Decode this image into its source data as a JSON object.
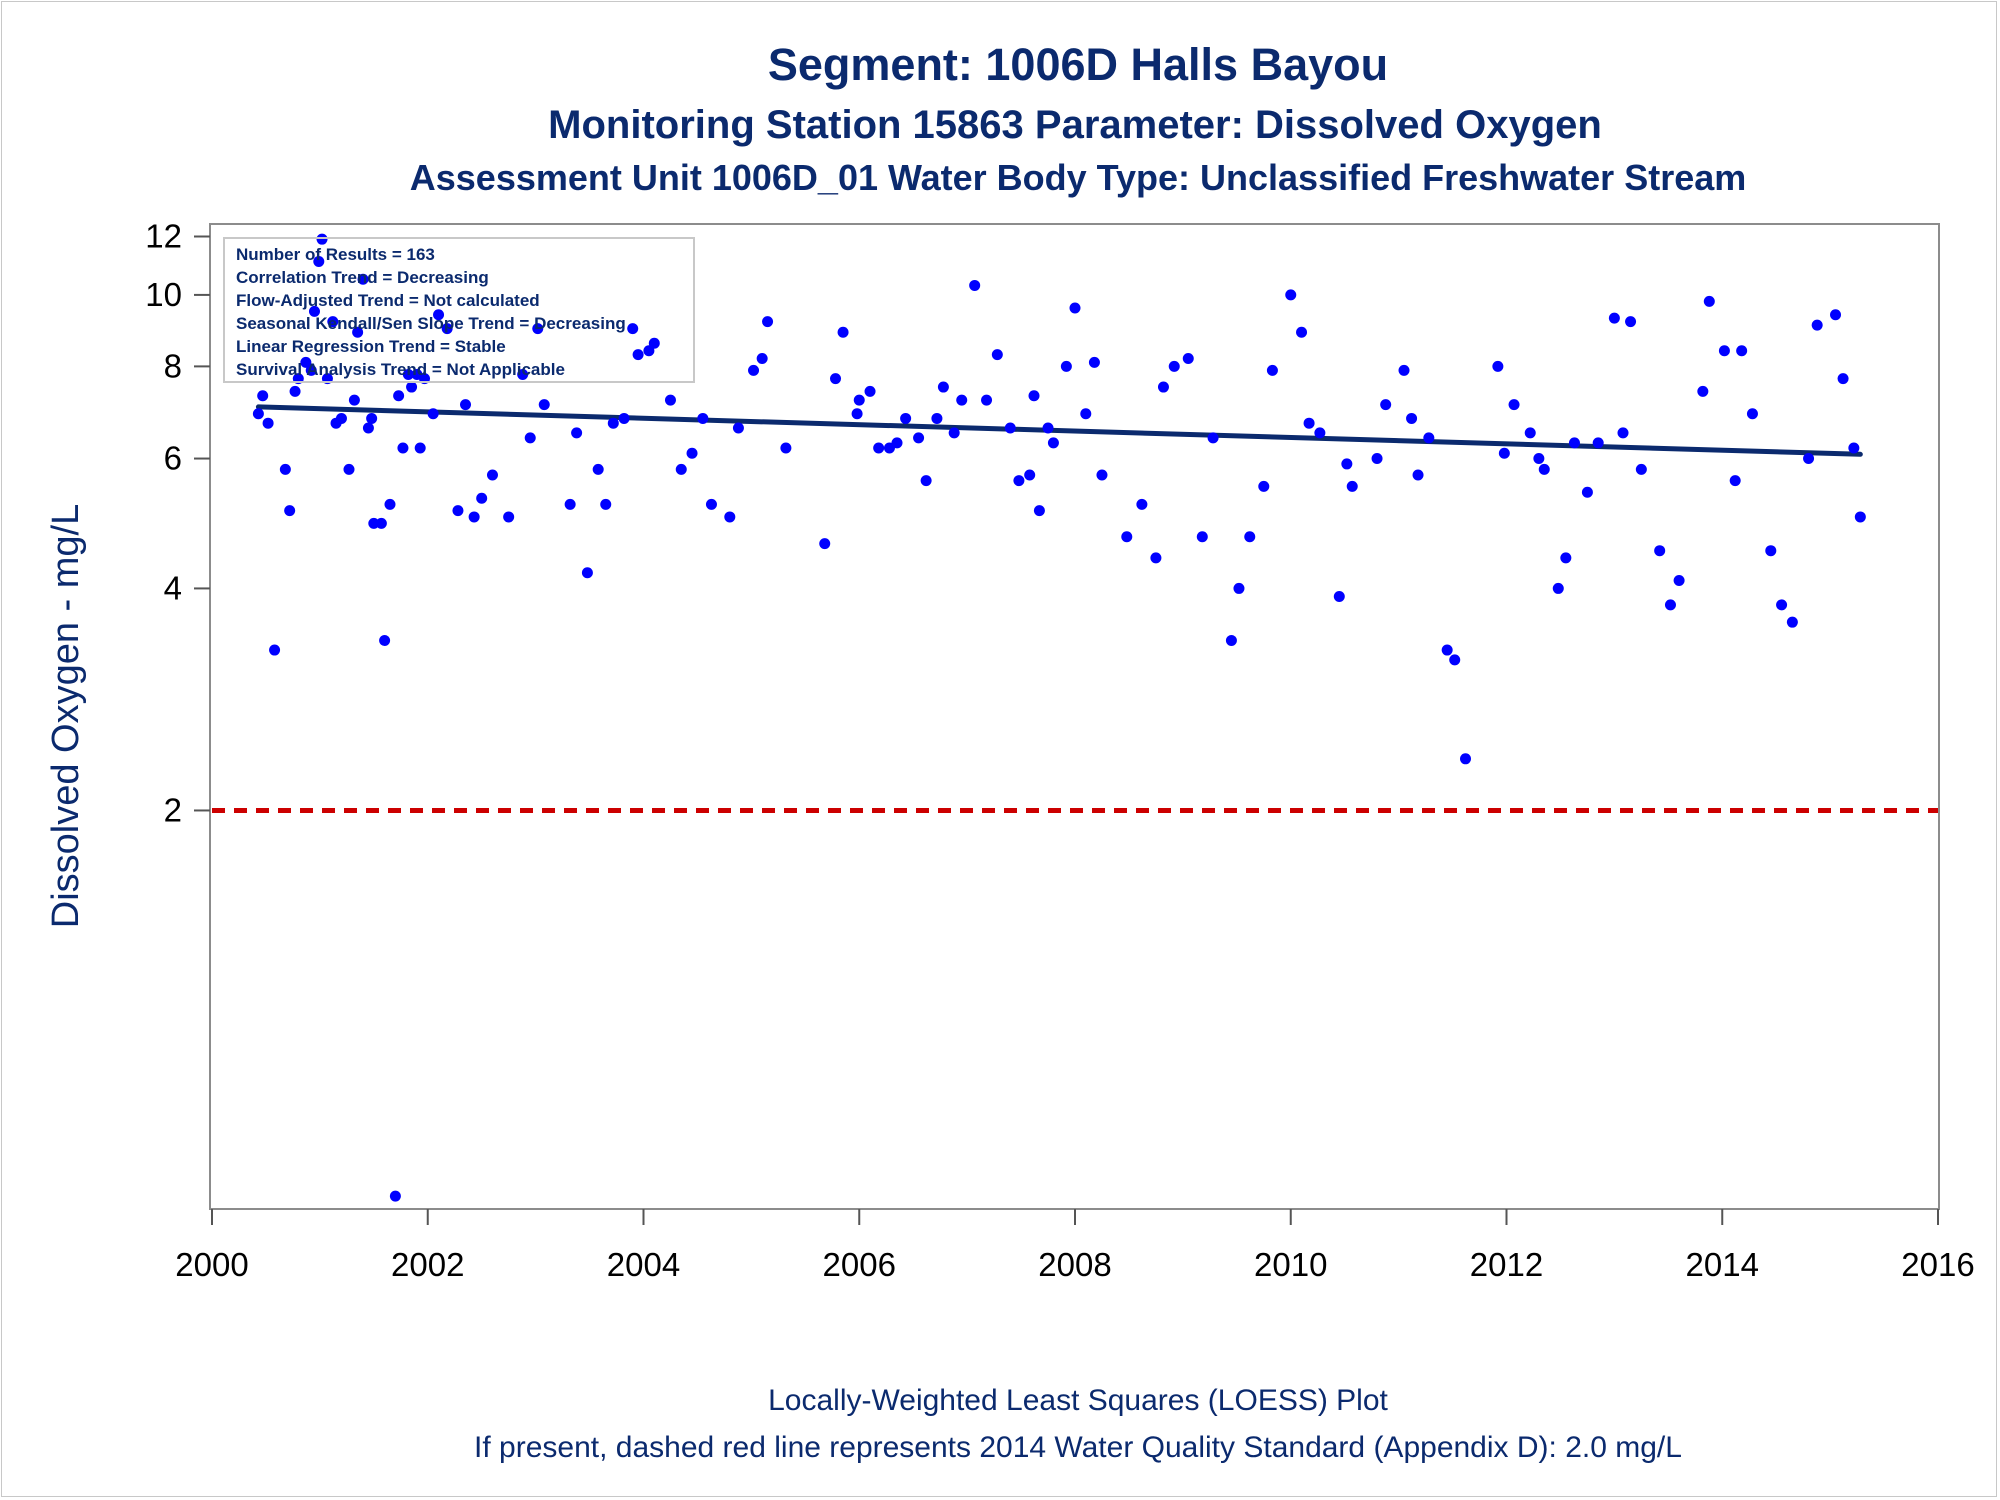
{
  "chart_data": {
    "type": "scatter",
    "title": "Segment: 1006D  Halls Bayou",
    "subtitle": "Monitoring Station 15863 Parameter: Dissolved Oxygen",
    "subtitle2": "Assessment Unit 1006D_01   Water Body Type: Unclassified Freshwater Stream",
    "ylabel": "Dissolved Oxygen - mg/L",
    "xlim": [
      2000,
      2016
    ],
    "ylim": [
      0.58,
      12.4
    ],
    "y_scale": "log",
    "x_ticks": [
      "2000",
      "2002",
      "2004",
      "2006",
      "2008",
      "2010",
      "2012",
      "2014",
      "2016"
    ],
    "y_ticks": [
      "2",
      "4",
      "6",
      "8",
      "10",
      "12"
    ],
    "grid": false,
    "stats_box": [
      "Number of Results = 163",
      "Correlation Trend = Decreasing",
      "Flow-Adjusted Trend = Not calculated",
      "Seasonal Kendall/Sen Slope Trend = Decreasing",
      "Linear Regression Trend = Stable",
      "Survival Analysis Trend = Not Applicable"
    ],
    "standard_line": {
      "value": 2.0,
      "color": "#cc0000"
    },
    "trend_line": {
      "x": [
        2000.43,
        2015.28
      ],
      "y": [
        7.05,
        6.08
      ],
      "color": "#0b2a6e"
    },
    "point_color": "#0000ff",
    "points": [
      [
        2000.43,
        6.9
      ],
      [
        2000.47,
        7.3
      ],
      [
        2000.52,
        6.7
      ],
      [
        2000.58,
        3.3
      ],
      [
        2000.68,
        5.8
      ],
      [
        2000.72,
        5.1
      ],
      [
        2000.77,
        7.4
      ],
      [
        2000.8,
        7.7
      ],
      [
        2000.87,
        8.1
      ],
      [
        2000.92,
        7.9
      ],
      [
        2000.95,
        9.5
      ],
      [
        2000.99,
        11.1
      ],
      [
        2001.02,
        11.9
      ],
      [
        2001.07,
        7.7
      ],
      [
        2001.12,
        9.2
      ],
      [
        2001.15,
        6.7
      ],
      [
        2001.2,
        6.8
      ],
      [
        2001.27,
        5.8
      ],
      [
        2001.32,
        7.2
      ],
      [
        2001.35,
        8.9
      ],
      [
        2001.4,
        10.5
      ],
      [
        2001.45,
        6.6
      ],
      [
        2001.48,
        6.8
      ],
      [
        2001.5,
        4.9
      ],
      [
        2001.57,
        4.9
      ],
      [
        2001.6,
        3.4
      ],
      [
        2001.65,
        5.2
      ],
      [
        2001.7,
        0.6
      ],
      [
        2001.73,
        7.3
      ],
      [
        2001.77,
        6.2
      ],
      [
        2001.82,
        7.8
      ],
      [
        2001.85,
        7.5
      ],
      [
        2001.9,
        7.8
      ],
      [
        2001.93,
        6.2
      ],
      [
        2001.97,
        7.7
      ],
      [
        2002.05,
        6.9
      ],
      [
        2002.1,
        9.4
      ],
      [
        2002.18,
        9.0
      ],
      [
        2002.28,
        5.1
      ],
      [
        2002.35,
        7.1
      ],
      [
        2002.43,
        5.0
      ],
      [
        2002.5,
        5.3
      ],
      [
        2002.6,
        5.7
      ],
      [
        2002.75,
        5.0
      ],
      [
        2002.88,
        7.8
      ],
      [
        2002.95,
        6.4
      ],
      [
        2003.02,
        9.0
      ],
      [
        2003.08,
        7.1
      ],
      [
        2003.32,
        5.2
      ],
      [
        2003.38,
        6.5
      ],
      [
        2003.48,
        4.2
      ],
      [
        2003.58,
        5.8
      ],
      [
        2003.65,
        5.2
      ],
      [
        2003.72,
        6.7
      ],
      [
        2003.82,
        6.8
      ],
      [
        2003.9,
        9.0
      ],
      [
        2003.95,
        8.3
      ],
      [
        2004.05,
        8.4
      ],
      [
        2004.1,
        8.6
      ],
      [
        2004.25,
        7.2
      ],
      [
        2004.35,
        5.8
      ],
      [
        2004.45,
        6.1
      ],
      [
        2004.55,
        6.8
      ],
      [
        2004.63,
        5.2
      ],
      [
        2004.8,
        5.0
      ],
      [
        2004.88,
        6.6
      ],
      [
        2005.02,
        7.9
      ],
      [
        2005.1,
        8.2
      ],
      [
        2005.15,
        9.2
      ],
      [
        2005.32,
        6.2
      ],
      [
        2005.68,
        4.6
      ],
      [
        2005.78,
        7.7
      ],
      [
        2005.85,
        8.9
      ],
      [
        2005.98,
        6.9
      ],
      [
        2006.0,
        7.2
      ],
      [
        2006.1,
        7.4
      ],
      [
        2006.18,
        6.2
      ],
      [
        2006.28,
        6.2
      ],
      [
        2006.35,
        6.3
      ],
      [
        2006.43,
        6.8
      ],
      [
        2006.55,
        6.4
      ],
      [
        2006.62,
        5.6
      ],
      [
        2006.72,
        6.8
      ],
      [
        2006.78,
        7.5
      ],
      [
        2006.88,
        6.5
      ],
      [
        2006.95,
        7.2
      ],
      [
        2007.07,
        10.3
      ],
      [
        2007.18,
        7.2
      ],
      [
        2007.28,
        8.3
      ],
      [
        2007.4,
        6.6
      ],
      [
        2007.48,
        5.6
      ],
      [
        2007.58,
        5.7
      ],
      [
        2007.62,
        7.3
      ],
      [
        2007.67,
        5.1
      ],
      [
        2007.75,
        6.6
      ],
      [
        2007.8,
        6.3
      ],
      [
        2007.92,
        8.0
      ],
      [
        2008.0,
        9.6
      ],
      [
        2008.1,
        6.9
      ],
      [
        2008.18,
        8.1
      ],
      [
        2008.25,
        5.7
      ],
      [
        2008.48,
        4.7
      ],
      [
        2008.62,
        5.2
      ],
      [
        2008.75,
        4.4
      ],
      [
        2008.82,
        7.5
      ],
      [
        2008.92,
        8.0
      ],
      [
        2009.05,
        8.2
      ],
      [
        2009.18,
        4.7
      ],
      [
        2009.28,
        6.4
      ],
      [
        2009.45,
        3.4
      ],
      [
        2009.52,
        4.0
      ],
      [
        2009.62,
        4.7
      ],
      [
        2009.75,
        5.5
      ],
      [
        2009.83,
        7.9
      ],
      [
        2010.0,
        10.0
      ],
      [
        2010.1,
        8.9
      ],
      [
        2010.17,
        6.7
      ],
      [
        2010.27,
        6.5
      ],
      [
        2010.45,
        3.9
      ],
      [
        2010.52,
        5.9
      ],
      [
        2010.57,
        5.5
      ],
      [
        2010.8,
        6.0
      ],
      [
        2010.88,
        7.1
      ],
      [
        2011.05,
        7.9
      ],
      [
        2011.12,
        6.8
      ],
      [
        2011.18,
        5.7
      ],
      [
        2011.28,
        6.4
      ],
      [
        2011.45,
        3.3
      ],
      [
        2011.52,
        3.2
      ],
      [
        2011.62,
        2.35
      ],
      [
        2011.92,
        8.0
      ],
      [
        2011.98,
        6.1
      ],
      [
        2012.07,
        7.1
      ],
      [
        2012.22,
        6.5
      ],
      [
        2012.3,
        6.0
      ],
      [
        2012.35,
        5.8
      ],
      [
        2012.48,
        4.0
      ],
      [
        2012.55,
        4.4
      ],
      [
        2012.63,
        6.3
      ],
      [
        2012.75,
        5.4
      ],
      [
        2012.85,
        6.3
      ],
      [
        2013.0,
        9.3
      ],
      [
        2013.08,
        6.5
      ],
      [
        2013.15,
        9.2
      ],
      [
        2013.25,
        5.8
      ],
      [
        2013.42,
        4.5
      ],
      [
        2013.52,
        3.8
      ],
      [
        2013.6,
        4.1
      ],
      [
        2013.82,
        7.4
      ],
      [
        2013.88,
        9.8
      ],
      [
        2014.02,
        8.4
      ],
      [
        2014.12,
        5.6
      ],
      [
        2014.18,
        8.4
      ],
      [
        2014.28,
        6.9
      ],
      [
        2014.45,
        4.5
      ],
      [
        2014.55,
        3.8
      ],
      [
        2014.65,
        3.6
      ],
      [
        2014.8,
        6.0
      ],
      [
        2014.88,
        9.1
      ],
      [
        2015.05,
        9.4
      ],
      [
        2015.12,
        7.7
      ],
      [
        2015.22,
        6.2
      ],
      [
        2015.28,
        5.0
      ]
    ]
  },
  "footer": {
    "line1": "Locally-Weighted Least Squares (LOESS) Plot",
    "line2": "If present, dashed red line represents 2014 Water Quality Standard (Appendix D): 2.0 mg/L"
  }
}
